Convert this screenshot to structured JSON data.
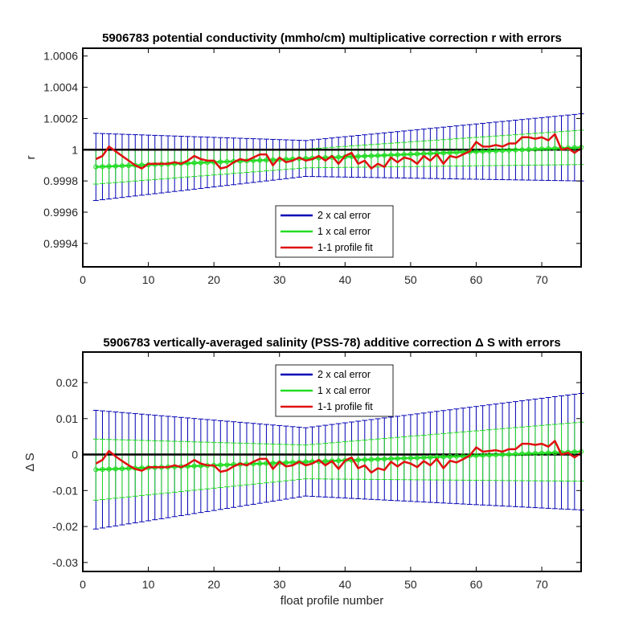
{
  "chart_data": [
    {
      "type": "line",
      "title": "5906783 potential conductivity (mmho/cm) multiplicative correction r with errors",
      "xlabel": "",
      "ylabel": "r",
      "xlim": [
        0,
        76
      ],
      "ylim": [
        0.99925,
        1.00065
      ],
      "xticks": [
        0,
        10,
        20,
        30,
        40,
        50,
        60,
        70
      ],
      "xtick_labels": [
        "0",
        "10",
        "20",
        "30",
        "40",
        "50",
        "60",
        "70"
      ],
      "yticks": [
        0.9994,
        0.9996,
        0.9998,
        1,
        1.0002,
        1.0004,
        1.0006
      ],
      "ytick_labels": [
        "0.9994",
        "0.9996",
        "0.9998",
        "1",
        "1.0002",
        "1.0004",
        "1.0006"
      ],
      "reference_line": 1,
      "legend": {
        "placement": "bottom-center",
        "entries": [
          "2 x cal error",
          "1 x cal error",
          "1-1 profile fit"
        ]
      },
      "colors": {
        "cal2": "#0000b4",
        "cal1": "#22dd22",
        "fit": "#e01010",
        "ref": "#000000"
      },
      "fit_line": {
        "x": [
          2,
          76
        ],
        "y": [
          0.99989,
          1.000015
        ]
      },
      "error_2x_halfwidth": {
        "x": [
          2,
          34,
          76
        ],
        "y": [
          0.000215,
          0.000115,
          0.000215
        ]
      },
      "error_1x_halfwidth": {
        "x": [
          2,
          34,
          76
        ],
        "y": [
          0.00011,
          6e-05,
          0.00011
        ]
      },
      "series": [
        {
          "name": "1-1 profile fit",
          "x": [
            2,
            3,
            4,
            5,
            6,
            7,
            8,
            9,
            10,
            11,
            12,
            13,
            14,
            15,
            16,
            17,
            18,
            19,
            20,
            21,
            22,
            23,
            24,
            25,
            26,
            27,
            28,
            29,
            30,
            31,
            32,
            33,
            34,
            35,
            36,
            37,
            38,
            39,
            40,
            41,
            42,
            43,
            44,
            45,
            46,
            47,
            48,
            49,
            50,
            51,
            52,
            53,
            54,
            55,
            56,
            57,
            58,
            59,
            60,
            61,
            62,
            63,
            64,
            65,
            66,
            67,
            68,
            69,
            70,
            71,
            72,
            73,
            74,
            75,
            76
          ],
          "y": [
            0.99994,
            0.99996,
            1.00002,
            0.99999,
            0.99996,
            0.99993,
            0.9999,
            0.99988,
            0.99991,
            0.99991,
            0.99991,
            0.99991,
            0.99992,
            0.99991,
            0.99993,
            0.99996,
            0.99994,
            0.99993,
            0.99993,
            0.99988,
            0.99989,
            0.99992,
            0.99994,
            0.99993,
            0.99995,
            0.99997,
            0.99997,
            0.9999,
            0.99995,
            0.99992,
            0.99993,
            0.99995,
            0.99993,
            0.99994,
            0.99996,
            0.99993,
            0.99996,
            0.99991,
            0.99996,
            0.99998,
            0.99991,
            0.99993,
            0.99988,
            0.99991,
            0.99989,
            0.99995,
            0.99992,
            0.99995,
            0.99994,
            0.99991,
            0.99996,
            0.99993,
            0.99997,
            0.99991,
            0.99996,
            0.99995,
            0.99997,
            0.99999,
            1.00005,
            1.00002,
            1.00002,
            1.00003,
            1.00002,
            1.00004,
            1.00004,
            1.00008,
            1.00008,
            1.00007,
            1.00008,
            1.00006,
            1.0001,
            1,
            1.00001,
            0.99998,
            1.00001
          ]
        }
      ]
    },
    {
      "type": "line",
      "title": "5906783 vertically-averaged salinity (PSS-78) additive correction Δ S with errors",
      "xlabel": "float profile number",
      "ylabel": "Δ S",
      "xlim": [
        0,
        76
      ],
      "ylim": [
        -0.0325,
        0.0285
      ],
      "xticks": [
        0,
        10,
        20,
        30,
        40,
        50,
        60,
        70
      ],
      "xtick_labels": [
        "0",
        "10",
        "20",
        "30",
        "40",
        "50",
        "60",
        "70"
      ],
      "yticks": [
        -0.03,
        -0.02,
        -0.01,
        0,
        0.01,
        0.02
      ],
      "ytick_labels": [
        "-0.03",
        "-0.02",
        "-0.01",
        "0",
        "0.01",
        "0.02"
      ],
      "reference_line": 0,
      "legend": {
        "placement": "top-center",
        "entries": [
          "2 x cal error",
          "1 x cal error",
          "1-1 profile fit"
        ]
      },
      "colors": {
        "cal2": "#0000b4",
        "cal1": "#22dd22",
        "fit": "#e01010",
        "ref": "#000000"
      },
      "fit_line": {
        "x": [
          2,
          76
        ],
        "y": [
          -0.0042,
          0.0008
        ]
      },
      "error_2x_halfwidth": {
        "x": [
          2,
          34,
          76
        ],
        "y": [
          0.0165,
          0.0095,
          0.0162
        ]
      },
      "error_1x_halfwidth": {
        "x": [
          2,
          34,
          76
        ],
        "y": [
          0.0085,
          0.0047,
          0.0082
        ]
      },
      "series": [
        {
          "name": "1-1 profile fit",
          "x": [
            2,
            3,
            4,
            5,
            6,
            7,
            8,
            9,
            10,
            11,
            12,
            13,
            14,
            15,
            16,
            17,
            18,
            19,
            20,
            21,
            22,
            23,
            24,
            25,
            26,
            27,
            28,
            29,
            30,
            31,
            32,
            33,
            34,
            35,
            36,
            37,
            38,
            39,
            40,
            41,
            42,
            43,
            44,
            45,
            46,
            47,
            48,
            49,
            50,
            51,
            52,
            53,
            54,
            55,
            56,
            57,
            58,
            59,
            60,
            61,
            62,
            63,
            64,
            65,
            66,
            67,
            68,
            69,
            70,
            71,
            72,
            73,
            74,
            75,
            76
          ],
          "y": [
            -0.0025,
            -0.0015,
            0.001,
            -0.0005,
            -0.0018,
            -0.003,
            -0.004,
            -0.0045,
            -0.0035,
            -0.0035,
            -0.0035,
            -0.0035,
            -0.003,
            -0.0035,
            -0.0027,
            -0.0015,
            -0.0025,
            -0.003,
            -0.003,
            -0.0048,
            -0.0044,
            -0.0033,
            -0.0025,
            -0.003,
            -0.002,
            -0.0012,
            -0.0012,
            -0.004,
            -0.002,
            -0.0033,
            -0.003,
            -0.002,
            -0.003,
            -0.0025,
            -0.0015,
            -0.003,
            -0.0018,
            -0.004,
            -0.0017,
            -0.0008,
            -0.0038,
            -0.003,
            -0.005,
            -0.0038,
            -0.0043,
            -0.002,
            -0.0033,
            -0.002,
            -0.0025,
            -0.0035,
            -0.0018,
            -0.003,
            -0.0012,
            -0.0038,
            -0.0017,
            -0.0022,
            -0.0013,
            -0.0003,
            0.002,
            0.0008,
            0.001,
            0.0012,
            0.0008,
            0.0015,
            0.0015,
            0.003,
            0.003,
            0.0027,
            0.003,
            0.0022,
            0.0038,
            0,
            0.0005,
            -0.0008,
            0.0005
          ]
        }
      ]
    }
  ]
}
